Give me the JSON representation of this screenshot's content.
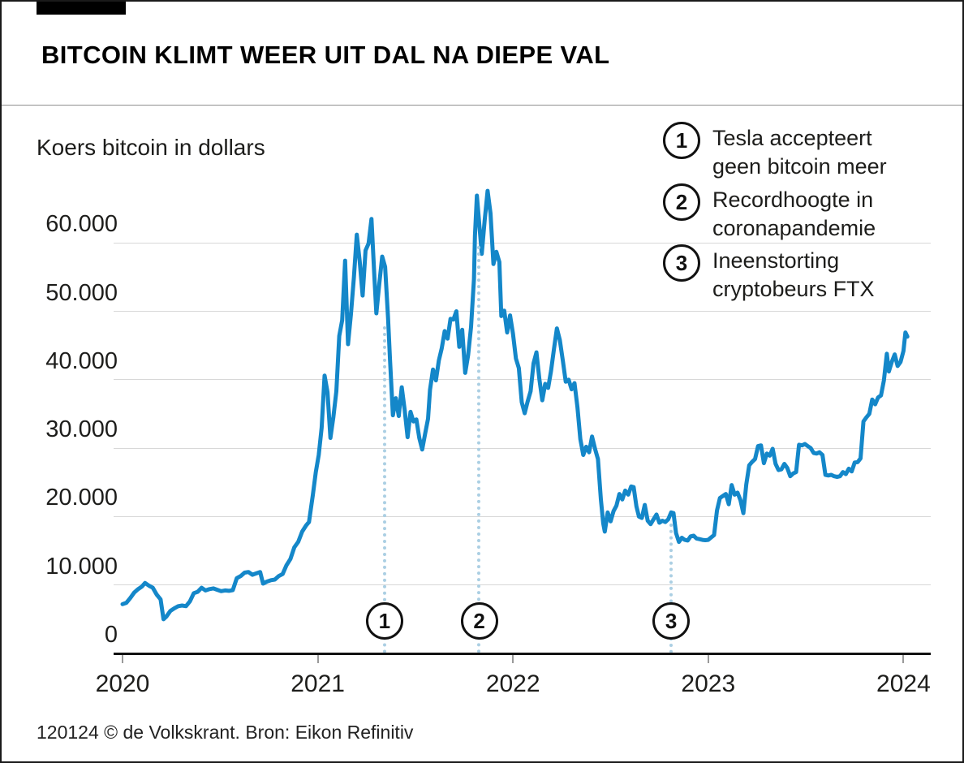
{
  "header": {
    "title": "BITCOIN KLIMT WEER UIT DAL NA DIEPE VAL"
  },
  "footer": {
    "credit": "120124 © de Volkskrant. Bron: Eikon Refinitiv"
  },
  "colors": {
    "line": "#1487c9",
    "dotted_line": "#abcfe3",
    "grid": "#d8d8d8",
    "axis": "#111111",
    "tab": "#000000"
  },
  "legend": {
    "items": [
      {
        "n": "1",
        "label_line1": "Tesla accepteert",
        "label_line2": "geen bitcoin meer"
      },
      {
        "n": "2",
        "label_line1": "Recordhoogte in",
        "label_line2": "coronapandemie"
      },
      {
        "n": "3",
        "label_line1": "Ineenstorting",
        "label_line2": "cryptobeurs FTX"
      }
    ]
  },
  "chart_data": {
    "type": "line",
    "title": "Koers bitcoin in dollars",
    "xlabel": "",
    "ylabel": "Koers bitcoin in dollars",
    "xlim": [
      2019.95,
      2024.14
    ],
    "ylim": [
      0,
      67600
    ],
    "grid": "horizontal",
    "x_ticks": [
      2020,
      2021,
      2022,
      2023,
      2024
    ],
    "x_tick_labels": [
      "2020",
      "2021",
      "2022",
      "2023",
      "2024"
    ],
    "y_ticks": [
      0,
      10000,
      20000,
      30000,
      40000,
      50000,
      60000
    ],
    "y_tick_labels": [
      "0",
      "10.000",
      "20.000",
      "30.000",
      "40.000",
      "50.000",
      "60.000"
    ],
    "annotations": [
      {
        "n": "1",
        "x": 2021.342,
        "line_top_value": 47800,
        "label": "Tesla accepteert geen bitcoin meer"
      },
      {
        "n": "2",
        "x": 2021.827,
        "line_top_value": 59500,
        "label": "Recordhoogte in coronapandemie"
      },
      {
        "n": "3",
        "x": 2022.81,
        "line_top_value": 19000,
        "label": "Ineenstorting cryptobeurs FTX"
      }
    ],
    "series": [
      {
        "name": "Koers bitcoin in dollars",
        "points": [
          [
            2020.0,
            7200
          ],
          [
            2020.02,
            7400
          ],
          [
            2020.04,
            8100
          ],
          [
            2020.06,
            8900
          ],
          [
            2020.08,
            9400
          ],
          [
            2020.1,
            9800
          ],
          [
            2020.115,
            10300
          ],
          [
            2020.135,
            9900
          ],
          [
            2020.155,
            9600
          ],
          [
            2020.175,
            8600
          ],
          [
            2020.195,
            7900
          ],
          [
            2020.21,
            5000
          ],
          [
            2020.225,
            5400
          ],
          [
            2020.245,
            6200
          ],
          [
            2020.265,
            6600
          ],
          [
            2020.285,
            6900
          ],
          [
            2020.305,
            7000
          ],
          [
            2020.325,
            6900
          ],
          [
            2020.345,
            7600
          ],
          [
            2020.365,
            8800
          ],
          [
            2020.385,
            9000
          ],
          [
            2020.405,
            9600
          ],
          [
            2020.425,
            9200
          ],
          [
            2020.445,
            9400
          ],
          [
            2020.465,
            9500
          ],
          [
            2020.485,
            9300
          ],
          [
            2020.505,
            9100
          ],
          [
            2020.525,
            9200
          ],
          [
            2020.545,
            9150
          ],
          [
            2020.565,
            9250
          ],
          [
            2020.585,
            11000
          ],
          [
            2020.605,
            11300
          ],
          [
            2020.625,
            11800
          ],
          [
            2020.645,
            11900
          ],
          [
            2020.665,
            11500
          ],
          [
            2020.685,
            11700
          ],
          [
            2020.705,
            11900
          ],
          [
            2020.72,
            10200
          ],
          [
            2020.74,
            10500
          ],
          [
            2020.76,
            10700
          ],
          [
            2020.78,
            10800
          ],
          [
            2020.8,
            11300
          ],
          [
            2020.82,
            11600
          ],
          [
            2020.84,
            12900
          ],
          [
            2020.86,
            13800
          ],
          [
            2020.88,
            15500
          ],
          [
            2020.9,
            16300
          ],
          [
            2020.92,
            17800
          ],
          [
            2020.94,
            18700
          ],
          [
            2020.955,
            19200
          ],
          [
            2020.975,
            23200
          ],
          [
            2020.99,
            26500
          ],
          [
            2021.005,
            29000
          ],
          [
            2021.02,
            33000
          ],
          [
            2021.035,
            40600
          ],
          [
            2021.05,
            38200
          ],
          [
            2021.065,
            31500
          ],
          [
            2021.08,
            34500
          ],
          [
            2021.095,
            38300
          ],
          [
            2021.11,
            46400
          ],
          [
            2021.125,
            48700
          ],
          [
            2021.14,
            57400
          ],
          [
            2021.155,
            45200
          ],
          [
            2021.17,
            49600
          ],
          [
            2021.185,
            54900
          ],
          [
            2021.2,
            61200
          ],
          [
            2021.215,
            57300
          ],
          [
            2021.23,
            52300
          ],
          [
            2021.245,
            58900
          ],
          [
            2021.26,
            59900
          ],
          [
            2021.275,
            63500
          ],
          [
            2021.29,
            55000
          ],
          [
            2021.3,
            49700
          ],
          [
            2021.315,
            54000
          ],
          [
            2021.33,
            58000
          ],
          [
            2021.345,
            56500
          ],
          [
            2021.36,
            49100
          ],
          [
            2021.37,
            43000
          ],
          [
            2021.385,
            34800
          ],
          [
            2021.4,
            37300
          ],
          [
            2021.415,
            34700
          ],
          [
            2021.43,
            38900
          ],
          [
            2021.445,
            35600
          ],
          [
            2021.46,
            31600
          ],
          [
            2021.475,
            35300
          ],
          [
            2021.49,
            33900
          ],
          [
            2021.505,
            34200
          ],
          [
            2021.52,
            31500
          ],
          [
            2021.535,
            29800
          ],
          [
            2021.55,
            32100
          ],
          [
            2021.565,
            34300
          ],
          [
            2021.575,
            38500
          ],
          [
            2021.59,
            41500
          ],
          [
            2021.605,
            39900
          ],
          [
            2021.62,
            42800
          ],
          [
            2021.635,
            44600
          ],
          [
            2021.65,
            47100
          ],
          [
            2021.665,
            46000
          ],
          [
            2021.68,
            48900
          ],
          [
            2021.695,
            48800
          ],
          [
            2021.71,
            50000
          ],
          [
            2021.725,
            44800
          ],
          [
            2021.74,
            47300
          ],
          [
            2021.755,
            41000
          ],
          [
            2021.77,
            43600
          ],
          [
            2021.785,
            47700
          ],
          [
            2021.8,
            54700
          ],
          [
            2021.805,
            61000
          ],
          [
            2021.815,
            66900
          ],
          [
            2021.84,
            58400
          ],
          [
            2021.855,
            63300
          ],
          [
            2021.87,
            67600
          ],
          [
            2021.885,
            64300
          ],
          [
            2021.9,
            56900
          ],
          [
            2021.915,
            58700
          ],
          [
            2021.93,
            57200
          ],
          [
            2021.94,
            49300
          ],
          [
            2021.955,
            50100
          ],
          [
            2021.97,
            46900
          ],
          [
            2021.985,
            49400
          ],
          [
            2022.0,
            46700
          ],
          [
            2022.015,
            43100
          ],
          [
            2022.03,
            41700
          ],
          [
            2022.045,
            36700
          ],
          [
            2022.06,
            35100
          ],
          [
            2022.075,
            36800
          ],
          [
            2022.09,
            38300
          ],
          [
            2022.105,
            42400
          ],
          [
            2022.12,
            44000
          ],
          [
            2022.135,
            40100
          ],
          [
            2022.15,
            37000
          ],
          [
            2022.165,
            39400
          ],
          [
            2022.18,
            38800
          ],
          [
            2022.195,
            41300
          ],
          [
            2022.21,
            44500
          ],
          [
            2022.225,
            47500
          ],
          [
            2022.24,
            45800
          ],
          [
            2022.255,
            42800
          ],
          [
            2022.27,
            39700
          ],
          [
            2022.285,
            40000
          ],
          [
            2022.3,
            38600
          ],
          [
            2022.315,
            39500
          ],
          [
            2022.33,
            36000
          ],
          [
            2022.345,
            31300
          ],
          [
            2022.36,
            29000
          ],
          [
            2022.375,
            30200
          ],
          [
            2022.39,
            29400
          ],
          [
            2022.405,
            31700
          ],
          [
            2022.42,
            29900
          ],
          [
            2022.435,
            28400
          ],
          [
            2022.45,
            22500
          ],
          [
            2022.462,
            19000
          ],
          [
            2022.47,
            17800
          ],
          [
            2022.485,
            20600
          ],
          [
            2022.5,
            19300
          ],
          [
            2022.515,
            20800
          ],
          [
            2022.53,
            21600
          ],
          [
            2022.545,
            23300
          ],
          [
            2022.56,
            22500
          ],
          [
            2022.575,
            23800
          ],
          [
            2022.59,
            23200
          ],
          [
            2022.605,
            24400
          ],
          [
            2022.618,
            24300
          ],
          [
            2022.632,
            21500
          ],
          [
            2022.645,
            20000
          ],
          [
            2022.66,
            19800
          ],
          [
            2022.675,
            21700
          ],
          [
            2022.69,
            19400
          ],
          [
            2022.705,
            18900
          ],
          [
            2022.72,
            19600
          ],
          [
            2022.735,
            20300
          ],
          [
            2022.75,
            19100
          ],
          [
            2022.765,
            19400
          ],
          [
            2022.78,
            19200
          ],
          [
            2022.795,
            19600
          ],
          [
            2022.81,
            20600
          ],
          [
            2022.822,
            20500
          ],
          [
            2022.835,
            17600
          ],
          [
            2022.85,
            16300
          ],
          [
            2022.865,
            16900
          ],
          [
            2022.88,
            16600
          ],
          [
            2022.895,
            16500
          ],
          [
            2022.91,
            17100
          ],
          [
            2022.925,
            17200
          ],
          [
            2022.94,
            16800
          ],
          [
            2022.955,
            16700
          ],
          [
            2022.97,
            16600
          ],
          [
            2022.985,
            16550
          ],
          [
            2023.0,
            16600
          ],
          [
            2023.015,
            16950
          ],
          [
            2023.03,
            17300
          ],
          [
            2023.045,
            20900
          ],
          [
            2023.06,
            22700
          ],
          [
            2023.075,
            23000
          ],
          [
            2023.09,
            23300
          ],
          [
            2023.105,
            21800
          ],
          [
            2023.12,
            24600
          ],
          [
            2023.135,
            23200
          ],
          [
            2023.15,
            23500
          ],
          [
            2023.165,
            22400
          ],
          [
            2023.18,
            20500
          ],
          [
            2023.195,
            24700
          ],
          [
            2023.21,
            27500
          ],
          [
            2023.225,
            28000
          ],
          [
            2023.24,
            28400
          ],
          [
            2023.255,
            30300
          ],
          [
            2023.27,
            30400
          ],
          [
            2023.285,
            27800
          ],
          [
            2023.3,
            29200
          ],
          [
            2023.315,
            28900
          ],
          [
            2023.33,
            29900
          ],
          [
            2023.345,
            27700
          ],
          [
            2023.36,
            26800
          ],
          [
            2023.375,
            26900
          ],
          [
            2023.39,
            27700
          ],
          [
            2023.405,
            27100
          ],
          [
            2023.42,
            25900
          ],
          [
            2023.435,
            26300
          ],
          [
            2023.45,
            26500
          ],
          [
            2023.465,
            30500
          ],
          [
            2023.48,
            30400
          ],
          [
            2023.495,
            30600
          ],
          [
            2023.51,
            30300
          ],
          [
            2023.525,
            30000
          ],
          [
            2023.54,
            29300
          ],
          [
            2023.555,
            29200
          ],
          [
            2023.57,
            29400
          ],
          [
            2023.585,
            29000
          ],
          [
            2023.6,
            26100
          ],
          [
            2023.615,
            26000
          ],
          [
            2023.63,
            26100
          ],
          [
            2023.645,
            25900
          ],
          [
            2023.66,
            25800
          ],
          [
            2023.675,
            25900
          ],
          [
            2023.69,
            26500
          ],
          [
            2023.705,
            26200
          ],
          [
            2023.72,
            27000
          ],
          [
            2023.735,
            26600
          ],
          [
            2023.75,
            27900
          ],
          [
            2023.765,
            27950
          ],
          [
            2023.78,
            28500
          ],
          [
            2023.795,
            33900
          ],
          [
            2023.81,
            34500
          ],
          [
            2023.825,
            35000
          ],
          [
            2023.84,
            37100
          ],
          [
            2023.855,
            36400
          ],
          [
            2023.87,
            37400
          ],
          [
            2023.885,
            37700
          ],
          [
            2023.9,
            39900
          ],
          [
            2023.915,
            43800
          ],
          [
            2023.925,
            41200
          ],
          [
            2023.94,
            42600
          ],
          [
            2023.955,
            43700
          ],
          [
            2023.97,
            42000
          ],
          [
            2023.985,
            42600
          ],
          [
            2024.0,
            44200
          ],
          [
            2024.01,
            46900
          ],
          [
            2024.02,
            46300
          ]
        ]
      }
    ]
  }
}
